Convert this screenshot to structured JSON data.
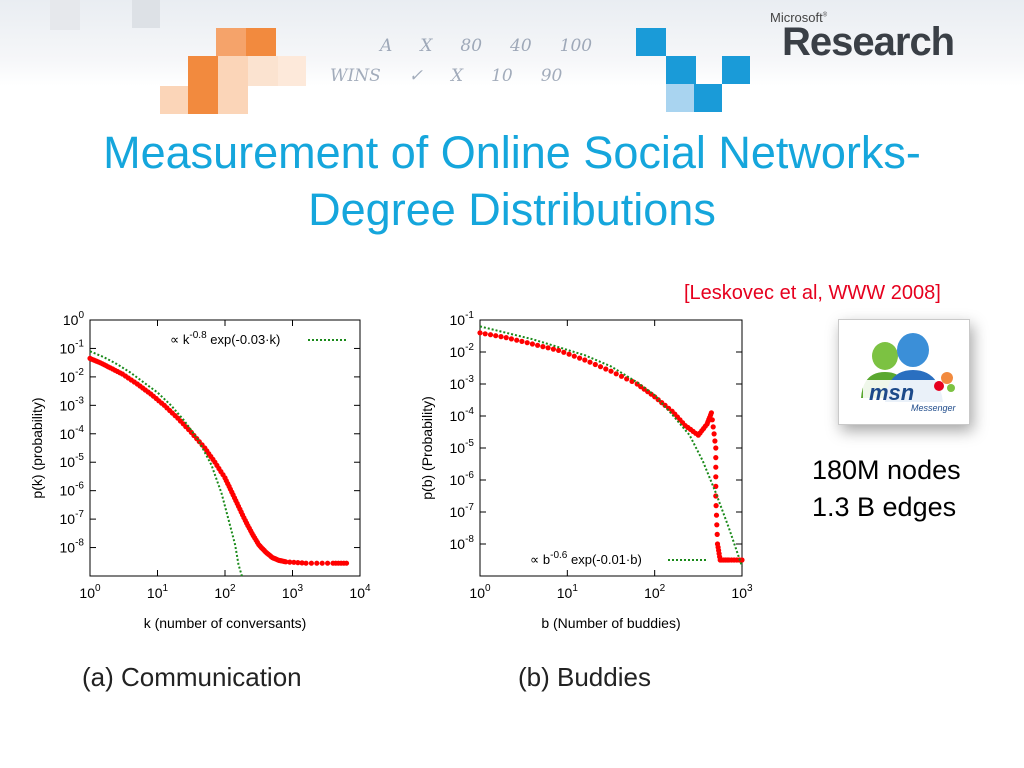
{
  "slide": {
    "title_line1": "Measurement of Online Social Networks-",
    "title_line2": "Degree Distributions",
    "citation": "[Leskovec et al,  WWW 2008]",
    "stats_nodes": "180M nodes",
    "stats_edges": "1.3 B edges",
    "logo_small": "Microsoft",
    "logo_large": "Research",
    "msn_logo_text": "msn",
    "msn_logo_sub": "Messenger",
    "handwriting": [
      [
        "A",
        "X",
        "80",
        "40",
        "100"
      ],
      [
        "WINS",
        "✓",
        "X",
        "10",
        "90"
      ]
    ],
    "colors": {
      "title": "#15a6dc",
      "citation": "#e6001e",
      "data": "#ff0000",
      "fit": "#1a8a1a",
      "orange_tiles": "#f28a3e",
      "blue_tiles": "#1a9bd8"
    }
  },
  "chart_data": [
    {
      "type": "scatter",
      "caption": "(a) Communication",
      "xlabel": "k (number of conversants)",
      "ylabel": "p(k) (probability)",
      "xscale": "log",
      "yscale": "log",
      "xlim_exp": [
        0,
        4
      ],
      "ylim_exp": [
        -9,
        0
      ],
      "x_ticks": [
        {
          "base": "10",
          "exp": "0"
        },
        {
          "base": "10",
          "exp": "1"
        },
        {
          "base": "10",
          "exp": "2"
        },
        {
          "base": "10",
          "exp": "3"
        },
        {
          "base": "10",
          "exp": "4"
        }
      ],
      "y_ticks": [
        {
          "base": "10",
          "exp": "0"
        },
        {
          "base": "10",
          "exp": "-1"
        },
        {
          "base": "10",
          "exp": "-2"
        },
        {
          "base": "10",
          "exp": "-3"
        },
        {
          "base": "10",
          "exp": "-4"
        },
        {
          "base": "10",
          "exp": "-5"
        },
        {
          "base": "10",
          "exp": "-6"
        },
        {
          "base": "10",
          "exp": "-7"
        },
        {
          "base": "10",
          "exp": "-8"
        }
      ],
      "legend": {
        "position": "top-right",
        "text_prefix": "∝ k",
        "text_exp": "-0.8",
        "text_suffix": " exp(-0.03·k)"
      },
      "series": [
        {
          "name": "data",
          "style": "points",
          "color": "#ff0000",
          "log_points": [
            [
              0,
              -1.35
            ],
            [
              0.15,
              -1.5
            ],
            [
              0.3,
              -1.68
            ],
            [
              0.48,
              -1.9
            ],
            [
              0.7,
              -2.25
            ],
            [
              0.9,
              -2.6
            ],
            [
              1.1,
              -3.0
            ],
            [
              1.3,
              -3.45
            ],
            [
              1.5,
              -3.95
            ],
            [
              1.7,
              -4.5
            ],
            [
              1.85,
              -5.0
            ],
            [
              2.0,
              -5.55
            ],
            [
              2.1,
              -6.05
            ],
            [
              2.2,
              -6.55
            ],
            [
              2.3,
              -7.05
            ],
            [
              2.4,
              -7.5
            ],
            [
              2.5,
              -7.9
            ],
            [
              2.6,
              -8.15
            ],
            [
              2.7,
              -8.35
            ],
            [
              2.8,
              -8.45
            ],
            [
              2.9,
              -8.5
            ],
            [
              3.2,
              -8.55
            ],
            [
              3.6,
              -8.55
            ],
            [
              3.8,
              -8.55
            ]
          ]
        },
        {
          "name": "fit",
          "style": "dotted",
          "color": "#1a8a1a",
          "log_points": [
            [
              0,
              -1.1
            ],
            [
              0.2,
              -1.3
            ],
            [
              0.4,
              -1.55
            ],
            [
              0.6,
              -1.85
            ],
            [
              0.8,
              -2.2
            ],
            [
              1.0,
              -2.55
            ],
            [
              1.2,
              -3.0
            ],
            [
              1.4,
              -3.55
            ],
            [
              1.6,
              -4.2
            ],
            [
              1.8,
              -5.1
            ],
            [
              1.95,
              -6.1
            ],
            [
              2.05,
              -7.0
            ],
            [
              2.15,
              -7.9
            ],
            [
              2.2,
              -8.6
            ],
            [
              2.25,
              -9.0
            ]
          ]
        }
      ]
    },
    {
      "type": "scatter",
      "caption": "(b) Buddies",
      "xlabel": "b (Number of buddies)",
      "ylabel": "p(b) (Probability)",
      "xscale": "log",
      "yscale": "log",
      "xlim_exp": [
        0,
        3
      ],
      "ylim_exp": [
        -9,
        -1
      ],
      "x_ticks": [
        {
          "base": "10",
          "exp": "0"
        },
        {
          "base": "10",
          "exp": "1"
        },
        {
          "base": "10",
          "exp": "2"
        },
        {
          "base": "10",
          "exp": "3"
        }
      ],
      "y_ticks": [
        {
          "base": "10",
          "exp": "-1"
        },
        {
          "base": "10",
          "exp": "-2"
        },
        {
          "base": "10",
          "exp": "-3"
        },
        {
          "base": "10",
          "exp": "-4"
        },
        {
          "base": "10",
          "exp": "-5"
        },
        {
          "base": "10",
          "exp": "-6"
        },
        {
          "base": "10",
          "exp": "-7"
        },
        {
          "base": "10",
          "exp": "-8"
        }
      ],
      "legend": {
        "position": "bottom-left",
        "text_prefix": "∝ b",
        "text_exp": "-0.6",
        "text_suffix": " exp(-0.01·b)"
      },
      "series": [
        {
          "name": "data",
          "style": "points",
          "color": "#ff0000",
          "log_points": [
            [
              0,
              -1.4
            ],
            [
              0.3,
              -1.55
            ],
            [
              0.6,
              -1.75
            ],
            [
              0.9,
              -1.95
            ],
            [
              1.2,
              -2.25
            ],
            [
              1.5,
              -2.6
            ],
            [
              1.8,
              -3.0
            ],
            [
              2.0,
              -3.4
            ],
            [
              2.2,
              -3.85
            ],
            [
              2.35,
              -4.3
            ],
            [
              2.5,
              -4.6
            ],
            [
              2.6,
              -4.25
            ],
            [
              2.65,
              -3.9
            ],
            [
              2.7,
              -5.0
            ],
            [
              2.7,
              -6.5
            ],
            [
              2.72,
              -8.0
            ],
            [
              2.75,
              -8.5
            ],
            [
              2.85,
              -8.5
            ],
            [
              3.0,
              -8.5
            ]
          ]
        },
        {
          "name": "fit",
          "style": "dotted",
          "color": "#1a8a1a",
          "log_points": [
            [
              0,
              -1.2
            ],
            [
              0.3,
              -1.4
            ],
            [
              0.6,
              -1.6
            ],
            [
              0.9,
              -1.85
            ],
            [
              1.2,
              -2.1
            ],
            [
              1.5,
              -2.45
            ],
            [
              1.8,
              -2.95
            ],
            [
              2.0,
              -3.35
            ],
            [
              2.2,
              -3.95
            ],
            [
              2.4,
              -4.6
            ],
            [
              2.55,
              -5.4
            ],
            [
              2.7,
              -6.4
            ],
            [
              2.85,
              -7.5
            ],
            [
              3.0,
              -8.7
            ]
          ]
        }
      ]
    }
  ]
}
